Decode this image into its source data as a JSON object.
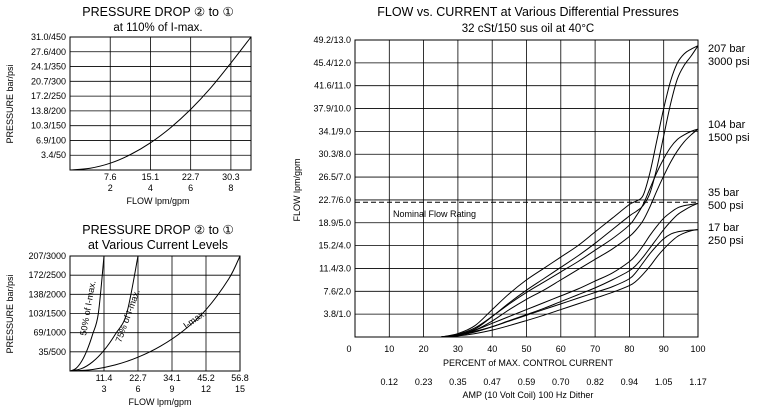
{
  "chart_data": [
    {
      "id": "pd1",
      "type": "line",
      "title_line1": "PRESSURE DROP ② to ①",
      "title_line2": "at 110% of I-max.",
      "ylabel": "PRESSURE bar/psi",
      "xlabel": "FLOW lpm/gpm",
      "y_ticks": [
        "3.4/50",
        "6.9/100",
        "10.3/150",
        "13.8/200",
        "17.2/250",
        "20.7/300",
        "24.1/350",
        "27.6/400",
        "31.0/450"
      ],
      "x_ticks_lpm": [
        "7.6",
        "15.1",
        "22.7",
        "30.3"
      ],
      "x_ticks_gpm": [
        "2",
        "4",
        "6",
        "8"
      ],
      "xlim": [
        0,
        9
      ],
      "ylim": [
        0,
        450
      ],
      "series": [
        {
          "x": [
            0,
            1,
            2,
            3,
            4,
            5,
            6,
            7,
            8,
            9
          ],
          "y": [
            0,
            6,
            23,
            52,
            92,
            143,
            205,
            278,
            362,
            450
          ]
        }
      ]
    },
    {
      "id": "pd2",
      "type": "line",
      "title_line1": "PRESSURE DROP ② to ①",
      "title_line2": "at Various Current Levels",
      "ylabel": "PRESSURE bar/psi",
      "xlabel": "FLOW lpm/gpm",
      "y_ticks": [
        "35/500",
        "69/1000",
        "103/1500",
        "138/2000",
        "172/2500",
        "207/3000"
      ],
      "x_ticks_lpm": [
        "11.4",
        "22.7",
        "34.1",
        "45.2",
        "56.8"
      ],
      "x_ticks_gpm": [
        "3",
        "6",
        "9",
        "12",
        "15"
      ],
      "xlim": [
        0,
        15
      ],
      "ylim": [
        0,
        3000
      ],
      "annotations": [
        "50% of I-max.",
        "75% of I-max.",
        "I-max."
      ],
      "series": [
        {
          "name": "50% of I-max.",
          "x": [
            0,
            0.5,
            1,
            1.5,
            2,
            2.5,
            3
          ],
          "y": [
            0,
            60,
            240,
            540,
            960,
            1500,
            3000
          ]
        },
        {
          "name": "75% of I-max.",
          "x": [
            0,
            1,
            2,
            3,
            4,
            5,
            6
          ],
          "y": [
            0,
            60,
            240,
            540,
            960,
            1500,
            3000
          ]
        },
        {
          "name": "I-max.",
          "x": [
            0,
            2,
            4,
            6,
            8,
            10,
            12,
            14,
            15
          ],
          "y": [
            0,
            40,
            160,
            360,
            650,
            1050,
            1600,
            2400,
            3000
          ]
        }
      ]
    },
    {
      "id": "main",
      "type": "line",
      "title": "FLOW vs. CURRENT at Various Differential Pressures",
      "subtitle": "32 cSt/150 sus oil at 40°C",
      "ylabel": "FLOW lpm/gpm",
      "xlabel": "PERCENT of MAX. CONTROL CURRENT",
      "x2label": "AMP (10 Volt Coil) 100 Hz Dither",
      "y_ticks": [
        "3.8/1.0",
        "7.6/2.0",
        "11.4/3.0",
        "15.2/4.0",
        "18.9/5.0",
        "22.7/6.0",
        "26.5/7.0",
        "30.3/8.0",
        "34.1/9.0",
        "37.9/10.0",
        "41.6/11.0",
        "45.4/12.0",
        "49.2/13.0"
      ],
      "x_ticks": [
        "0",
        "10",
        "20",
        "30",
        "40",
        "50",
        "60",
        "70",
        "80",
        "90",
        "100"
      ],
      "amp_ticks": [
        "0.12",
        "0.23",
        "0.35",
        "0.47",
        "0.59",
        "0.70",
        "0.82",
        "0.94",
        "1.05",
        "1.17"
      ],
      "xlim": [
        0,
        100
      ],
      "ylim": [
        0,
        13
      ],
      "nominal_label": "Nominal Flow Rating",
      "nominal_value": 5.9,
      "legend": [
        {
          "line1": "207 bar",
          "line2": "3000 psi"
        },
        {
          "line1": "104 bar",
          "line2": "1500 psi"
        },
        {
          "line1": "35 bar",
          "line2": "500 psi"
        },
        {
          "line1": "17 bar",
          "line2": "250 psi"
        }
      ],
      "series": [
        {
          "name": "207 bar",
          "x": [
            25,
            30,
            35,
            40,
            45,
            50,
            55,
            60,
            65,
            70,
            75,
            80,
            82,
            84,
            86,
            88,
            90,
            92,
            94,
            96,
            98,
            100
          ],
          "up": [
            0,
            0.15,
            0.5,
            1.2,
            1.9,
            2.5,
            3.0,
            3.5,
            4.0,
            4.6,
            5.2,
            5.8,
            5.95,
            6.2,
            7.2,
            8.6,
            10.0,
            11.2,
            12.0,
            12.4,
            12.6,
            12.75
          ],
          "down": [
            0,
            0.1,
            0.35,
            0.9,
            1.5,
            2.05,
            2.55,
            3.05,
            3.55,
            4.1,
            4.7,
            5.3,
            5.5,
            5.75,
            6.3,
            7.4,
            8.8,
            10.2,
            11.3,
            11.9,
            12.3,
            12.75
          ]
        },
        {
          "name": "104 bar",
          "x": [
            25,
            30,
            35,
            40,
            45,
            50,
            55,
            60,
            65,
            70,
            75,
            80,
            82,
            84,
            86,
            88,
            90,
            92,
            94,
            96,
            98,
            100
          ],
          "up": [
            0,
            0.12,
            0.4,
            0.9,
            1.45,
            1.95,
            2.4,
            2.85,
            3.3,
            3.8,
            4.3,
            4.9,
            5.3,
            5.8,
            6.5,
            7.2,
            7.8,
            8.3,
            8.65,
            8.85,
            9.0,
            9.1
          ],
          "down": [
            0,
            0.08,
            0.3,
            0.7,
            1.2,
            1.65,
            2.05,
            2.5,
            2.95,
            3.4,
            3.85,
            4.4,
            4.7,
            5.1,
            5.7,
            6.4,
            7.05,
            7.65,
            8.15,
            8.55,
            8.85,
            9.1
          ]
        },
        {
          "name": "35 bar",
          "x": [
            25,
            30,
            35,
            40,
            45,
            50,
            55,
            60,
            65,
            70,
            75,
            80,
            82,
            84,
            86,
            88,
            90,
            92,
            94,
            96,
            98,
            100
          ],
          "up": [
            0,
            0.1,
            0.3,
            0.6,
            0.9,
            1.2,
            1.5,
            1.8,
            2.1,
            2.45,
            2.8,
            3.3,
            3.6,
            4.0,
            4.45,
            4.85,
            5.2,
            5.45,
            5.65,
            5.75,
            5.8,
            5.85
          ],
          "down": [
            0,
            0.07,
            0.22,
            0.45,
            0.72,
            0.98,
            1.25,
            1.55,
            1.85,
            2.15,
            2.5,
            2.9,
            3.15,
            3.5,
            3.9,
            4.3,
            4.7,
            5.05,
            5.35,
            5.55,
            5.72,
            5.85
          ]
        },
        {
          "name": "17 bar",
          "x": [
            25,
            30,
            35,
            40,
            45,
            50,
            55,
            60,
            65,
            70,
            75,
            80,
            82,
            84,
            86,
            88,
            90,
            92,
            94,
            96,
            98,
            100
          ],
          "up": [
            0,
            0.08,
            0.25,
            0.45,
            0.7,
            0.95,
            1.2,
            1.45,
            1.7,
            1.95,
            2.2,
            2.55,
            2.85,
            3.25,
            3.65,
            4.0,
            4.3,
            4.5,
            4.6,
            4.65,
            4.68,
            4.7
          ],
          "down": [
            0,
            0.05,
            0.15,
            0.3,
            0.5,
            0.72,
            0.95,
            1.2,
            1.45,
            1.7,
            1.95,
            2.25,
            2.45,
            2.75,
            3.1,
            3.5,
            3.85,
            4.15,
            4.4,
            4.55,
            4.65,
            4.7
          ]
        }
      ]
    }
  ]
}
